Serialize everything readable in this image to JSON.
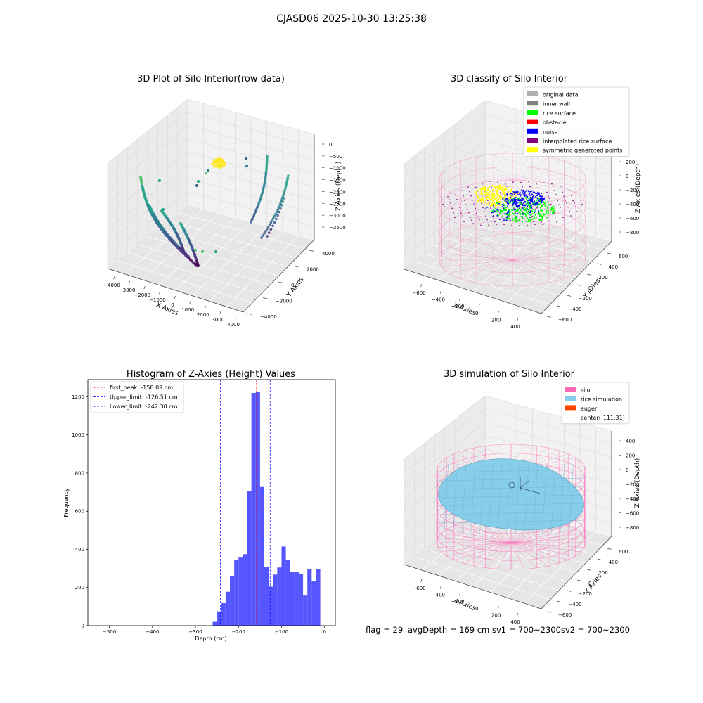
{
  "figure_title": "CJASD06 2025-10-30 13:25:38",
  "footer": {
    "flag": "flag = 29",
    "avg_depth": "avgDepth = 169 cm",
    "sv1": "sv1 = 700~2300",
    "sv2": "sv2 = 700~2300"
  },
  "colors": {
    "grid": "#d8d8d8",
    "pane_face": "#f2f2f2",
    "silo": "#ff69b4",
    "rice_sim": "#87ceeb",
    "auger": "#ff4500",
    "rice_surface": "#00ff00",
    "noise": "#0000ff",
    "interpolated": "#800080",
    "symmetric": "#ffff00",
    "original": "#b0b0b0",
    "inner_wall": "#808080",
    "obstacle": "#ff0000",
    "hist_bar": "#4d4dff"
  },
  "chart_data": [
    {
      "type": "scatter",
      "title": "3D Plot of Silo Interior(row data)",
      "xlabel": "X Axies",
      "ylabel": "Y Axies",
      "zlabel": "Z Axies (Depth)",
      "x_ticks": [
        "−4000",
        "−3000",
        "−2000",
        "−1000",
        "0",
        "1000",
        "2000",
        "3000",
        "4000"
      ],
      "y_ticks": [
        "−4000",
        "−2000",
        "0",
        "2000",
        "4000"
      ],
      "z_ticks": [
        "0",
        "−500",
        "−1000",
        "−1500",
        "−2000",
        "−2500",
        "−3000",
        "−3500"
      ],
      "colormap": "viridis"
    },
    {
      "type": "scatter",
      "title": "3D classify of Silo Interior",
      "xlabel": "X Axies",
      "ylabel": "Y Axies",
      "zlabel": "Z Axies (Depth)",
      "x_ticks": [
        "−600",
        "−400",
        "−200",
        "0",
        "200",
        "400"
      ],
      "y_ticks": [
        "−600",
        "−400",
        "−200",
        "0",
        "200",
        "400",
        "600"
      ],
      "z_ticks": [
        "200",
        "0",
        "−200",
        "−400",
        "−600",
        "−800"
      ],
      "legend_position": "top-right",
      "legend": [
        {
          "label": "original data",
          "color": "#b0b0b0"
        },
        {
          "label": "inner wall",
          "color": "#808080"
        },
        {
          "label": "rice surface",
          "color": "#00ff00"
        },
        {
          "label": "obstacle",
          "color": "#ff0000"
        },
        {
          "label": "noise",
          "color": "#0000ff"
        },
        {
          "label": "interpolated rice surface",
          "color": "#800080"
        },
        {
          "label": "symmetric generated points",
          "color": "#ffff00"
        }
      ]
    },
    {
      "type": "bar",
      "title": "Histogram of Z-Axies (Height) Values",
      "xlabel": "Depth (cm)",
      "ylabel": "Frequency",
      "xlim": [
        -550,
        25
      ],
      "ylim": [
        0,
        1290
      ],
      "x_ticks": [
        -500,
        -400,
        -300,
        -200,
        -100,
        0
      ],
      "y_ticks": [
        0,
        200,
        400,
        600,
        800,
        1000,
        1200
      ],
      "bin_width": 10,
      "bins": [
        {
          "x": -260,
          "v": 20
        },
        {
          "x": -250,
          "v": 75
        },
        {
          "x": -240,
          "v": 118
        },
        {
          "x": -230,
          "v": 178
        },
        {
          "x": -220,
          "v": 260
        },
        {
          "x": -210,
          "v": 345
        },
        {
          "x": -200,
          "v": 357
        },
        {
          "x": -190,
          "v": 375
        },
        {
          "x": -180,
          "v": 705
        },
        {
          "x": -170,
          "v": 1220
        },
        {
          "x": -160,
          "v": 1225
        },
        {
          "x": -150,
          "v": 727
        },
        {
          "x": -140,
          "v": 307
        },
        {
          "x": -130,
          "v": 205
        },
        {
          "x": -120,
          "v": 268
        },
        {
          "x": -110,
          "v": 305
        },
        {
          "x": -100,
          "v": 415
        },
        {
          "x": -90,
          "v": 343
        },
        {
          "x": -80,
          "v": 280
        },
        {
          "x": -70,
          "v": 282
        },
        {
          "x": -60,
          "v": 273
        },
        {
          "x": -50,
          "v": 158
        },
        {
          "x": -40,
          "v": 298
        },
        {
          "x": -30,
          "v": 232
        },
        {
          "x": -20,
          "v": 298
        }
      ],
      "lines": [
        {
          "label": "first_peak: -158.09 cm",
          "x": -158.09,
          "color": "#ff0000"
        },
        {
          "label": "Upper_limit: -126.51 cm",
          "x": -126.51,
          "color": "#0000ff"
        },
        {
          "label": "Lower_limit: -242.30 cm",
          "x": -242.3,
          "color": "#0000ff"
        }
      ],
      "legend_position": "top-left"
    },
    {
      "type": "area",
      "title": "3D simulation of Silo Interior",
      "xlabel": "X Axies",
      "ylabel": "Y Axies",
      "zlabel": "Z Axies (Depth)",
      "x_ticks": [
        "−600",
        "−400",
        "−200",
        "0",
        "200",
        "400"
      ],
      "y_ticks": [
        "−600",
        "−400",
        "−200",
        "0",
        "200",
        "400",
        "600"
      ],
      "z_ticks": [
        "400",
        "200",
        "0",
        "−200",
        "−400",
        "−600",
        "−800"
      ],
      "legend_position": "top-right",
      "legend": [
        {
          "label": "silo",
          "color": "#ff69b4"
        },
        {
          "label": "rice simulation",
          "color": "#87ceeb"
        },
        {
          "label": "auger",
          "color": "#ff4500"
        },
        {
          "label": "center(-111,31)",
          "color": ""
        }
      ]
    }
  ]
}
